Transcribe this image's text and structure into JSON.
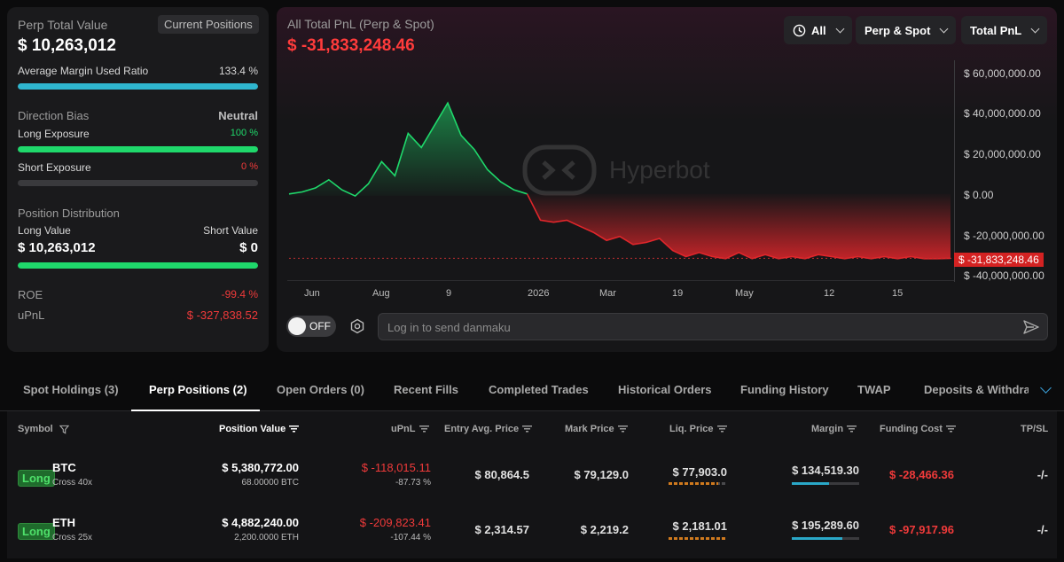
{
  "left": {
    "perp_total_value_label": "Perp Total Value",
    "current_positions_label": "Current Positions",
    "perp_total_value": "$ 10,263,012",
    "avg_margin_label": "Average Margin Used Ratio",
    "avg_margin_value": "133.4 %",
    "avg_margin_fill": 1.0,
    "direction_bias_label": "Direction Bias",
    "direction_bias_value": "Neutral",
    "long_exposure_label": "Long Exposure",
    "long_exposure_value": "100 %",
    "long_exposure_fill": 1.0,
    "short_exposure_label": "Short Exposure",
    "short_exposure_value": "0 %",
    "short_exposure_fill": 0.0,
    "position_distribution_label": "Position Distribution",
    "long_value_label": "Long Value",
    "short_value_label": "Short Value",
    "long_value": "$ 10,263,012",
    "short_value": "$ 0",
    "distribution_fill": 1.0,
    "roe_label": "ROE",
    "roe_value": "-99.4 %",
    "upnl_label": "uPnL",
    "upnl_value": "$ -327,838.52"
  },
  "chart": {
    "title": "All Total PnL (Perp & Spot)",
    "value": "$ -31,833,248.46",
    "filters": {
      "range": "All",
      "market": "Perp & Spot",
      "metric": "Total PnL"
    },
    "watermark": "Hyperbot",
    "current_label": "$ -31,833,248.46",
    "danmaku_toggle": "OFF",
    "danmaku_placeholder": "Log in to send danmaku",
    "colors": {
      "positive": "#1fd86b",
      "negative": "#e0262b"
    }
  },
  "chart_data": {
    "type": "area",
    "title": "All Total PnL (Perp & Spot)",
    "y_ticks": [
      "$ 60,000,000.00",
      "$ 40,000,000.00",
      "$ 20,000,000.00",
      "$ 0.00",
      "$ -20,000,000.00",
      "$ -40,000,000.00"
    ],
    "x_ticks": [
      "Jun",
      "Aug",
      "9",
      "2026",
      "Mar",
      "19",
      "May",
      "12",
      "15"
    ],
    "ylim": [
      -40000000,
      60000000
    ],
    "x": [
      0,
      2,
      4,
      6,
      8,
      10,
      12,
      14,
      16,
      18,
      20,
      22,
      24,
      26,
      28,
      30,
      32,
      34,
      36,
      38,
      40,
      42,
      44,
      46,
      48,
      50,
      52,
      54,
      56,
      58,
      60,
      62,
      64,
      66,
      68,
      70,
      72,
      74,
      76,
      78,
      80,
      82,
      84,
      86,
      88,
      90,
      92,
      94,
      96,
      98,
      100
    ],
    "y": [
      0,
      1000000,
      3000000,
      7000000,
      2000000,
      -1000000,
      5000000,
      16000000,
      9000000,
      30000000,
      23000000,
      34000000,
      45000000,
      29000000,
      22000000,
      12000000,
      6000000,
      2000000,
      0,
      -13000000,
      -14000000,
      -13000000,
      -16000000,
      -19000000,
      -23000000,
      -21000000,
      -25000000,
      -24000000,
      -22000000,
      -28000000,
      -31000000,
      -29000000,
      -31000000,
      -32000000,
      -29000000,
      -32000000,
      -30000000,
      -32000000,
      -31000000,
      -32000000,
      -30000000,
      -31000000,
      -32000000,
      -31000000,
      -32000000,
      -31000000,
      -32000000,
      -31000000,
      -32000000,
      -32000000,
      -31833248
    ]
  },
  "tabs": [
    "Spot Holdings (3)",
    "Perp Positions (2)",
    "Open Orders (0)",
    "Recent Fills",
    "Completed Trades",
    "Historical Orders",
    "Funding History",
    "TWAP",
    "Deposits & Withdraw"
  ],
  "table": {
    "headers": {
      "symbol": "Symbol",
      "position_value": "Position Value",
      "upnl": "uPnL",
      "entry": "Entry Avg. Price",
      "mark": "Mark Price",
      "liq": "Liq. Price",
      "margin": "Margin",
      "funding": "Funding Cost",
      "tpsl": "TP/SL"
    },
    "rows": [
      {
        "side": "Long",
        "symbol": "BTC",
        "leverage": "Cross 40x",
        "position_value": "$ 5,380,772.00",
        "size": "68.00000 BTC",
        "upnl": "$ -118,015.11",
        "upnl_pct": "-87.73 %",
        "entry": "$ 80,864.5",
        "mark": "$ 79,129.0",
        "liq": "$ 77,903.0",
        "liq_risk": 0.85,
        "margin": "$ 134,519.30",
        "margin_ratio": 0.55,
        "funding": "$ -28,466.36",
        "tpsl": "-/-"
      },
      {
        "side": "Long",
        "symbol": "ETH",
        "leverage": "Cross 25x",
        "position_value": "$ 4,882,240.00",
        "size": "2,200.0000 ETH",
        "upnl": "$ -209,823.41",
        "upnl_pct": "-107.44 %",
        "entry": "$ 2,314.57",
        "mark": "$ 2,219.2",
        "liq": "$ 2,181.01",
        "liq_risk": 1.0,
        "margin": "$ 195,289.60",
        "margin_ratio": 0.75,
        "funding": "$ -97,917.96",
        "tpsl": "-/-"
      }
    ]
  }
}
